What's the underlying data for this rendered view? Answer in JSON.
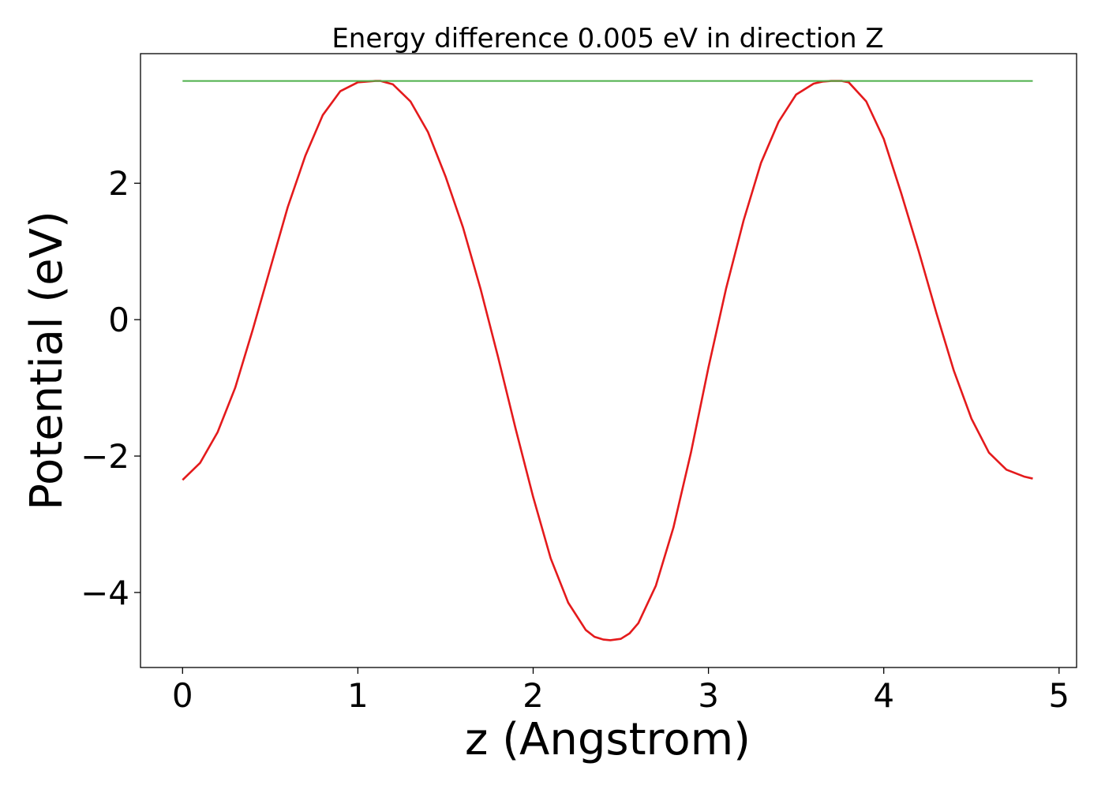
{
  "chart_data": {
    "type": "line",
    "title": "Energy difference 0.005 eV in direction Z",
    "xlabel": "z (Angstrom)",
    "ylabel": "Potential (eV)",
    "xlim": [
      -0.24,
      5.1
    ],
    "ylim": [
      -5.1,
      3.9
    ],
    "x_ticks": [
      0,
      1,
      2,
      3,
      4,
      5
    ],
    "x_tick_labels": [
      "0",
      "1",
      "2",
      "3",
      "4",
      "5"
    ],
    "y_ticks": [
      -4,
      -2,
      0,
      2
    ],
    "y_tick_labels": [
      "−4",
      "−2",
      "0",
      "2"
    ],
    "grid": false,
    "legend": "none",
    "series": [
      {
        "color": "#e41a1c",
        "x": [
          0,
          0.1,
          0.2,
          0.3,
          0.4,
          0.5,
          0.6,
          0.7,
          0.8,
          0.9,
          1.0,
          1.05,
          1.1,
          1.13,
          1.2,
          1.3,
          1.4,
          1.5,
          1.6,
          1.7,
          1.8,
          1.9,
          2.0,
          2.1,
          2.2,
          2.3,
          2.35,
          2.4,
          2.44,
          2.5,
          2.55,
          2.6,
          2.7,
          2.8,
          2.9,
          3.0,
          3.1,
          3.2,
          3.3,
          3.4,
          3.5,
          3.6,
          3.65,
          3.7,
          3.76,
          3.8,
          3.9,
          4.0,
          4.1,
          4.2,
          4.3,
          4.4,
          4.5,
          4.6,
          4.7,
          4.8,
          4.85
        ],
        "y": [
          -2.35,
          -2.1,
          -1.65,
          -1.0,
          -0.15,
          0.75,
          1.65,
          2.4,
          3.0,
          3.35,
          3.48,
          3.49,
          3.5,
          3.5,
          3.45,
          3.2,
          2.75,
          2.1,
          1.35,
          0.45,
          -0.55,
          -1.6,
          -2.6,
          -3.5,
          -4.15,
          -4.55,
          -4.65,
          -4.69,
          -4.7,
          -4.68,
          -4.6,
          -4.45,
          -3.9,
          -3.05,
          -1.95,
          -0.7,
          0.45,
          1.45,
          2.3,
          2.9,
          3.3,
          3.46,
          3.49,
          3.5,
          3.5,
          3.48,
          3.2,
          2.65,
          1.85,
          1.0,
          0.1,
          -0.75,
          -1.45,
          -1.95,
          -2.2,
          -2.3,
          -2.33
        ]
      },
      {
        "color": "#4daf4a",
        "x": [
          0,
          4.85
        ],
        "y": [
          3.5,
          3.5
        ]
      }
    ]
  }
}
